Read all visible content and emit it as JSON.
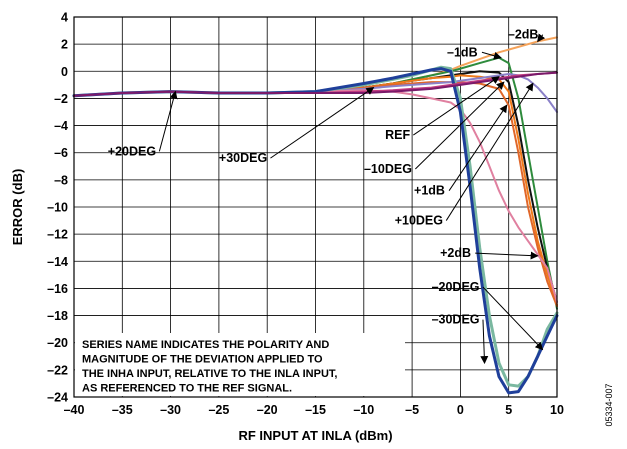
{
  "chart_data": {
    "type": "line",
    "xlabel": "RF INPUT AT INLA (dBm)",
    "ylabel": "ERROR (dB)",
    "xlim": [
      -40,
      10
    ],
    "ylim": [
      -24,
      4
    ],
    "xticks": [
      -40,
      -35,
      -30,
      -25,
      -20,
      -15,
      -10,
      -5,
      0,
      5,
      10
    ],
    "yticks": [
      4,
      2,
      0,
      -2,
      -4,
      -6,
      -8,
      -10,
      -12,
      -14,
      -16,
      -18,
      -20,
      -22,
      -24
    ],
    "xtick_labels": [
      "–40",
      "–35",
      "–30",
      "–25",
      "–20",
      "–15",
      "–10",
      "–5",
      "0",
      "5",
      "10"
    ],
    "ytick_labels": [
      "4",
      "2",
      "0",
      "–2",
      "–4",
      "–6",
      "–8",
      "–10",
      "–12",
      "–14",
      "–16",
      "–18",
      "–20",
      "–22",
      "–24"
    ],
    "grid": true,
    "note_lines": [
      "SERIES NAME INDICATES THE POLARITY AND",
      "MAGNITUDE OF THE DEVIATION APPLIED TO",
      "THE INHA INPUT, RELATIVE TO THE INLA INPUT,",
      "AS REFERENCED TO THE REF SIGNAL."
    ],
    "figure_id": "05334-007",
    "series": [
      {
        "name": "–2dB",
        "color": "#f5a35a",
        "x": [
          -40,
          -35,
          -30,
          -25,
          -20,
          -15,
          -10,
          -7,
          -5,
          -3,
          -1,
          0,
          2,
          4,
          6,
          8,
          10
        ],
        "y": [
          -1.8,
          -1.6,
          -1.5,
          -1.6,
          -1.6,
          -1.5,
          -1.2,
          -0.9,
          -0.6,
          -0.3,
          0.1,
          0.4,
          0.9,
          1.4,
          1.8,
          2.2,
          2.5
        ]
      },
      {
        "name": "–1dB",
        "color": "#2e8b3c",
        "x": [
          -40,
          -35,
          -30,
          -25,
          -20,
          -15,
          -10,
          -7,
          -5,
          -3,
          -1,
          0,
          2,
          4,
          5,
          6,
          7,
          8,
          9,
          10
        ],
        "y": [
          -1.8,
          -1.6,
          -1.5,
          -1.6,
          -1.6,
          -1.5,
          -1.2,
          -0.9,
          -0.6,
          -0.3,
          0.0,
          0.2,
          0.6,
          1.0,
          0.6,
          -2,
          -6,
          -10,
          -14,
          -17.5
        ]
      },
      {
        "name": "REF",
        "color": "#111111",
        "x": [
          -40,
          -35,
          -30,
          -25,
          -20,
          -15,
          -10,
          -7,
          -5,
          -3,
          -1,
          0,
          2,
          4,
          5,
          6,
          7,
          8,
          9,
          10
        ],
        "y": [
          -1.8,
          -1.6,
          -1.5,
          -1.6,
          -1.6,
          -1.5,
          -1.2,
          -0.9,
          -0.7,
          -0.5,
          -0.3,
          -0.2,
          0.0,
          -0.1,
          -0.8,
          -4,
          -8,
          -11.5,
          -14.5,
          -17
        ]
      },
      {
        "name": "–10DEG",
        "color": "#f07a1a",
        "x": [
          -40,
          -35,
          -30,
          -25,
          -20,
          -15,
          -10,
          -7,
          -5,
          -3,
          -1,
          0,
          2,
          4,
          5,
          6,
          7,
          8,
          9,
          10
        ],
        "y": [
          -1.8,
          -1.6,
          -1.5,
          -1.6,
          -1.6,
          -1.5,
          -1.2,
          -0.9,
          -0.7,
          -0.5,
          -0.4,
          -0.3,
          -0.4,
          -0.6,
          -1.5,
          -5,
          -9,
          -12.5,
          -15,
          -17.2
        ]
      },
      {
        "name": "+1dB",
        "color": "#e0672a",
        "x": [
          -40,
          -35,
          -30,
          -25,
          -20,
          -15,
          -10,
          -7,
          -5,
          -3,
          -1,
          0,
          2,
          4,
          5,
          6,
          7,
          8,
          9,
          10
        ],
        "y": [
          -1.8,
          -1.6,
          -1.5,
          -1.6,
          -1.6,
          -1.5,
          -1.2,
          -1.0,
          -0.9,
          -0.8,
          -0.8,
          -0.8,
          -0.9,
          -1.3,
          -2.5,
          -6,
          -10,
          -13,
          -15.5,
          -17.3
        ]
      },
      {
        "name": "+10DEG",
        "color": "#8a80c8",
        "x": [
          -40,
          -35,
          -30,
          -25,
          -20,
          -15,
          -10,
          -7,
          -5,
          -3,
          -1,
          0,
          2,
          4,
          5,
          6,
          7,
          8,
          9,
          10
        ],
        "y": [
          -1.8,
          -1.6,
          -1.5,
          -1.6,
          -1.6,
          -1.5,
          -1.3,
          -1.1,
          -1.0,
          -0.9,
          -0.8,
          -0.7,
          -0.5,
          -0.3,
          -0.2,
          -0.3,
          -0.6,
          -1.2,
          -2.0,
          -3.0
        ]
      },
      {
        "name": "+2dB",
        "color": "#e080a0",
        "x": [
          -40,
          -35,
          -30,
          -25,
          -20,
          -15,
          -10,
          -7,
          -5,
          -3,
          -1,
          0,
          1,
          2,
          3,
          4,
          5,
          6,
          7,
          8,
          9,
          10
        ],
        "y": [
          -1.8,
          -1.6,
          -1.5,
          -1.6,
          -1.6,
          -1.5,
          -1.4,
          -1.5,
          -1.7,
          -2.0,
          -2.3,
          -2.8,
          -3.8,
          -5.2,
          -7.0,
          -8.8,
          -10.3,
          -11.5,
          -12.5,
          -13.5,
          -14.5,
          -17
        ]
      },
      {
        "name": "–20DEG",
        "color": "#7ab8a0",
        "x": [
          -40,
          -35,
          -30,
          -25,
          -20,
          -15,
          -10,
          -7,
          -5,
          -3,
          -2,
          -1,
          0,
          1,
          2,
          3,
          4,
          5,
          6,
          7,
          8,
          9,
          10
        ],
        "y": [
          -1.8,
          -1.6,
          -1.5,
          -1.6,
          -1.6,
          -1.5,
          -1.0,
          -0.6,
          -0.3,
          0.1,
          0.3,
          0.2,
          -2,
          -7,
          -13,
          -18,
          -21.5,
          -23.1,
          -23.2,
          -22.5,
          -21,
          -19,
          -17.8
        ]
      },
      {
        "name": "–30DEG",
        "color": "#1f3f9a",
        "x": [
          -40,
          -35,
          -30,
          -25,
          -20,
          -15,
          -10,
          -7,
          -5,
          -3,
          -2,
          -1,
          0,
          1,
          2,
          3,
          4,
          5,
          6,
          7,
          8,
          9,
          10
        ],
        "y": [
          -1.8,
          -1.6,
          -1.5,
          -1.6,
          -1.6,
          -1.5,
          -0.9,
          -0.5,
          -0.2,
          0.1,
          0.2,
          0.0,
          -3,
          -8.5,
          -14.5,
          -19.5,
          -22.5,
          -23.7,
          -23.6,
          -22.5,
          -21,
          -19.5,
          -18
        ]
      },
      {
        "name": "+20DEG",
        "color": "#c03a80",
        "x": [
          -40,
          -35,
          -30,
          -25,
          -20,
          -15,
          -10,
          -7,
          -5,
          -3,
          -1,
          0,
          2,
          4,
          6,
          8,
          10
        ],
        "y": [
          -1.8,
          -1.6,
          -1.5,
          -1.6,
          -1.6,
          -1.6,
          -1.5,
          -1.4,
          -1.3,
          -1.2,
          -1.0,
          -0.9,
          -0.7,
          -0.5,
          -0.3,
          -0.2,
          -0.1
        ]
      },
      {
        "name": "+30DEG",
        "color": "#7a1a6a",
        "x": [
          -40,
          -35,
          -30,
          -25,
          -20,
          -15,
          -10,
          -7,
          -5,
          -3,
          -1,
          0,
          2,
          4,
          6,
          8,
          10
        ],
        "y": [
          -1.8,
          -1.6,
          -1.5,
          -1.6,
          -1.6,
          -1.6,
          -1.6,
          -1.5,
          -1.4,
          -1.3,
          -1.1,
          -1.0,
          -0.8,
          -0.6,
          -0.4,
          -0.2,
          -0.1
        ]
      }
    ],
    "annotations": [
      {
        "text": "–2dB",
        "x": 6.5,
        "y": 2.7
      },
      {
        "text": "–1dB",
        "x": 0.2,
        "y": 1.4
      },
      {
        "text": "REF",
        "x": -6.5,
        "y": -4.7
      },
      {
        "text": "–10DEG",
        "x": -7.5,
        "y": -7.2
      },
      {
        "text": "+1dB",
        "x": -3.2,
        "y": -8.8
      },
      {
        "text": "+10DEG",
        "x": -4.3,
        "y": -11.0
      },
      {
        "text": "+2dB",
        "x": -0.5,
        "y": -13.4
      },
      {
        "text": "–20DEG",
        "x": -0.5,
        "y": -15.9
      },
      {
        "text": "–30DEG",
        "x": -0.5,
        "y": -18.3
      },
      {
        "text": "+20DEG",
        "x": -34.0,
        "y": -5.9
      },
      {
        "text": "+30DEG",
        "x": -22.5,
        "y": -6.4
      }
    ]
  }
}
